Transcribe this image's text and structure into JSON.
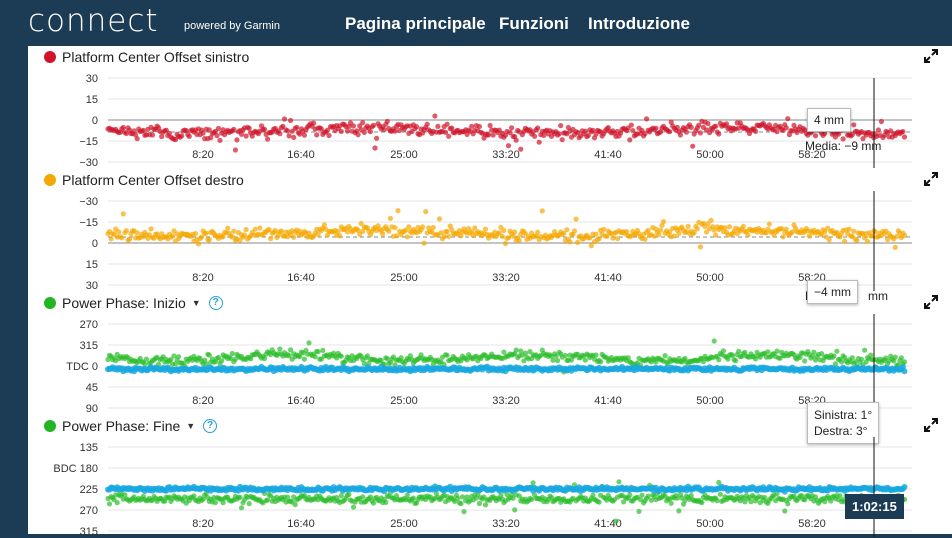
{
  "header": {
    "logo": "connect",
    "powered_by": "powered by Garmin",
    "nav": [
      "Pagina principale",
      "Funzioni",
      "Introduzione"
    ]
  },
  "x_ticks": [
    "8:20",
    "16:40",
    "25:00",
    "33:20",
    "41:40",
    "50:00",
    "58:20"
  ],
  "panels": [
    {
      "title": "Platform Center Offset sinistro",
      "color": "#d0152b",
      "y_ticks": [
        "30",
        "15",
        "0",
        "−15",
        "−30"
      ],
      "tooltip": "4 mm",
      "media": "Media: −9 mm"
    },
    {
      "title": "Platform Center Offset destro",
      "color": "#f5a800",
      "y_ticks": [
        "−30",
        "−15",
        "0",
        "15",
        "30"
      ],
      "tooltip": "−4 mm",
      "media_partial": "M",
      "media_tail": "mm"
    },
    {
      "title": "Power Phase: Inizio",
      "color": "#22b522",
      "y_ticks": [
        "270",
        "315",
        "TDC 0",
        "45",
        "90"
      ],
      "tooltip_left": "Sinistra: 1°",
      "tooltip_right": "Destra: 3°"
    },
    {
      "title": "Power Phase: Fine",
      "color": "#22b522",
      "y_ticks": [
        "135",
        "BDC 180",
        "225",
        "270",
        "315"
      ],
      "time_label": "1:02:15"
    }
  ],
  "series_colors": {
    "left_green": "#2cbe2c",
    "right_blue": "#19a8e0"
  },
  "chart_data": [
    {
      "type": "scatter",
      "title": "Platform Center Offset sinistro",
      "ylim": [
        -30,
        30
      ],
      "mean": -9,
      "y_unit": "mm",
      "x_ticks": [
        "8:20",
        "16:40",
        "25:00",
        "33:20",
        "41:40",
        "50:00",
        "58:20"
      ]
    },
    {
      "type": "scatter",
      "title": "Platform Center Offset destro",
      "ylim": [
        -30,
        30
      ],
      "mean": -4,
      "y_unit": "mm",
      "x_ticks": [
        "8:20",
        "16:40",
        "25:00",
        "33:20",
        "41:40",
        "50:00",
        "58:20"
      ]
    },
    {
      "type": "scatter",
      "title": "Power Phase: Inizio",
      "y_ticks": [
        "270",
        "315",
        "TDC 0",
        "45",
        "90"
      ],
      "x_ticks": [
        "8:20",
        "16:40",
        "25:00",
        "33:20",
        "41:40",
        "50:00",
        "58:20"
      ]
    },
    {
      "type": "scatter",
      "title": "Power Phase: Fine",
      "y_ticks": [
        "135",
        "BDC 180",
        "225",
        "270",
        "315"
      ],
      "x_ticks": [
        "8:20",
        "16:40",
        "25:00",
        "33:20",
        "41:40",
        "50:00",
        "58:20"
      ]
    }
  ]
}
